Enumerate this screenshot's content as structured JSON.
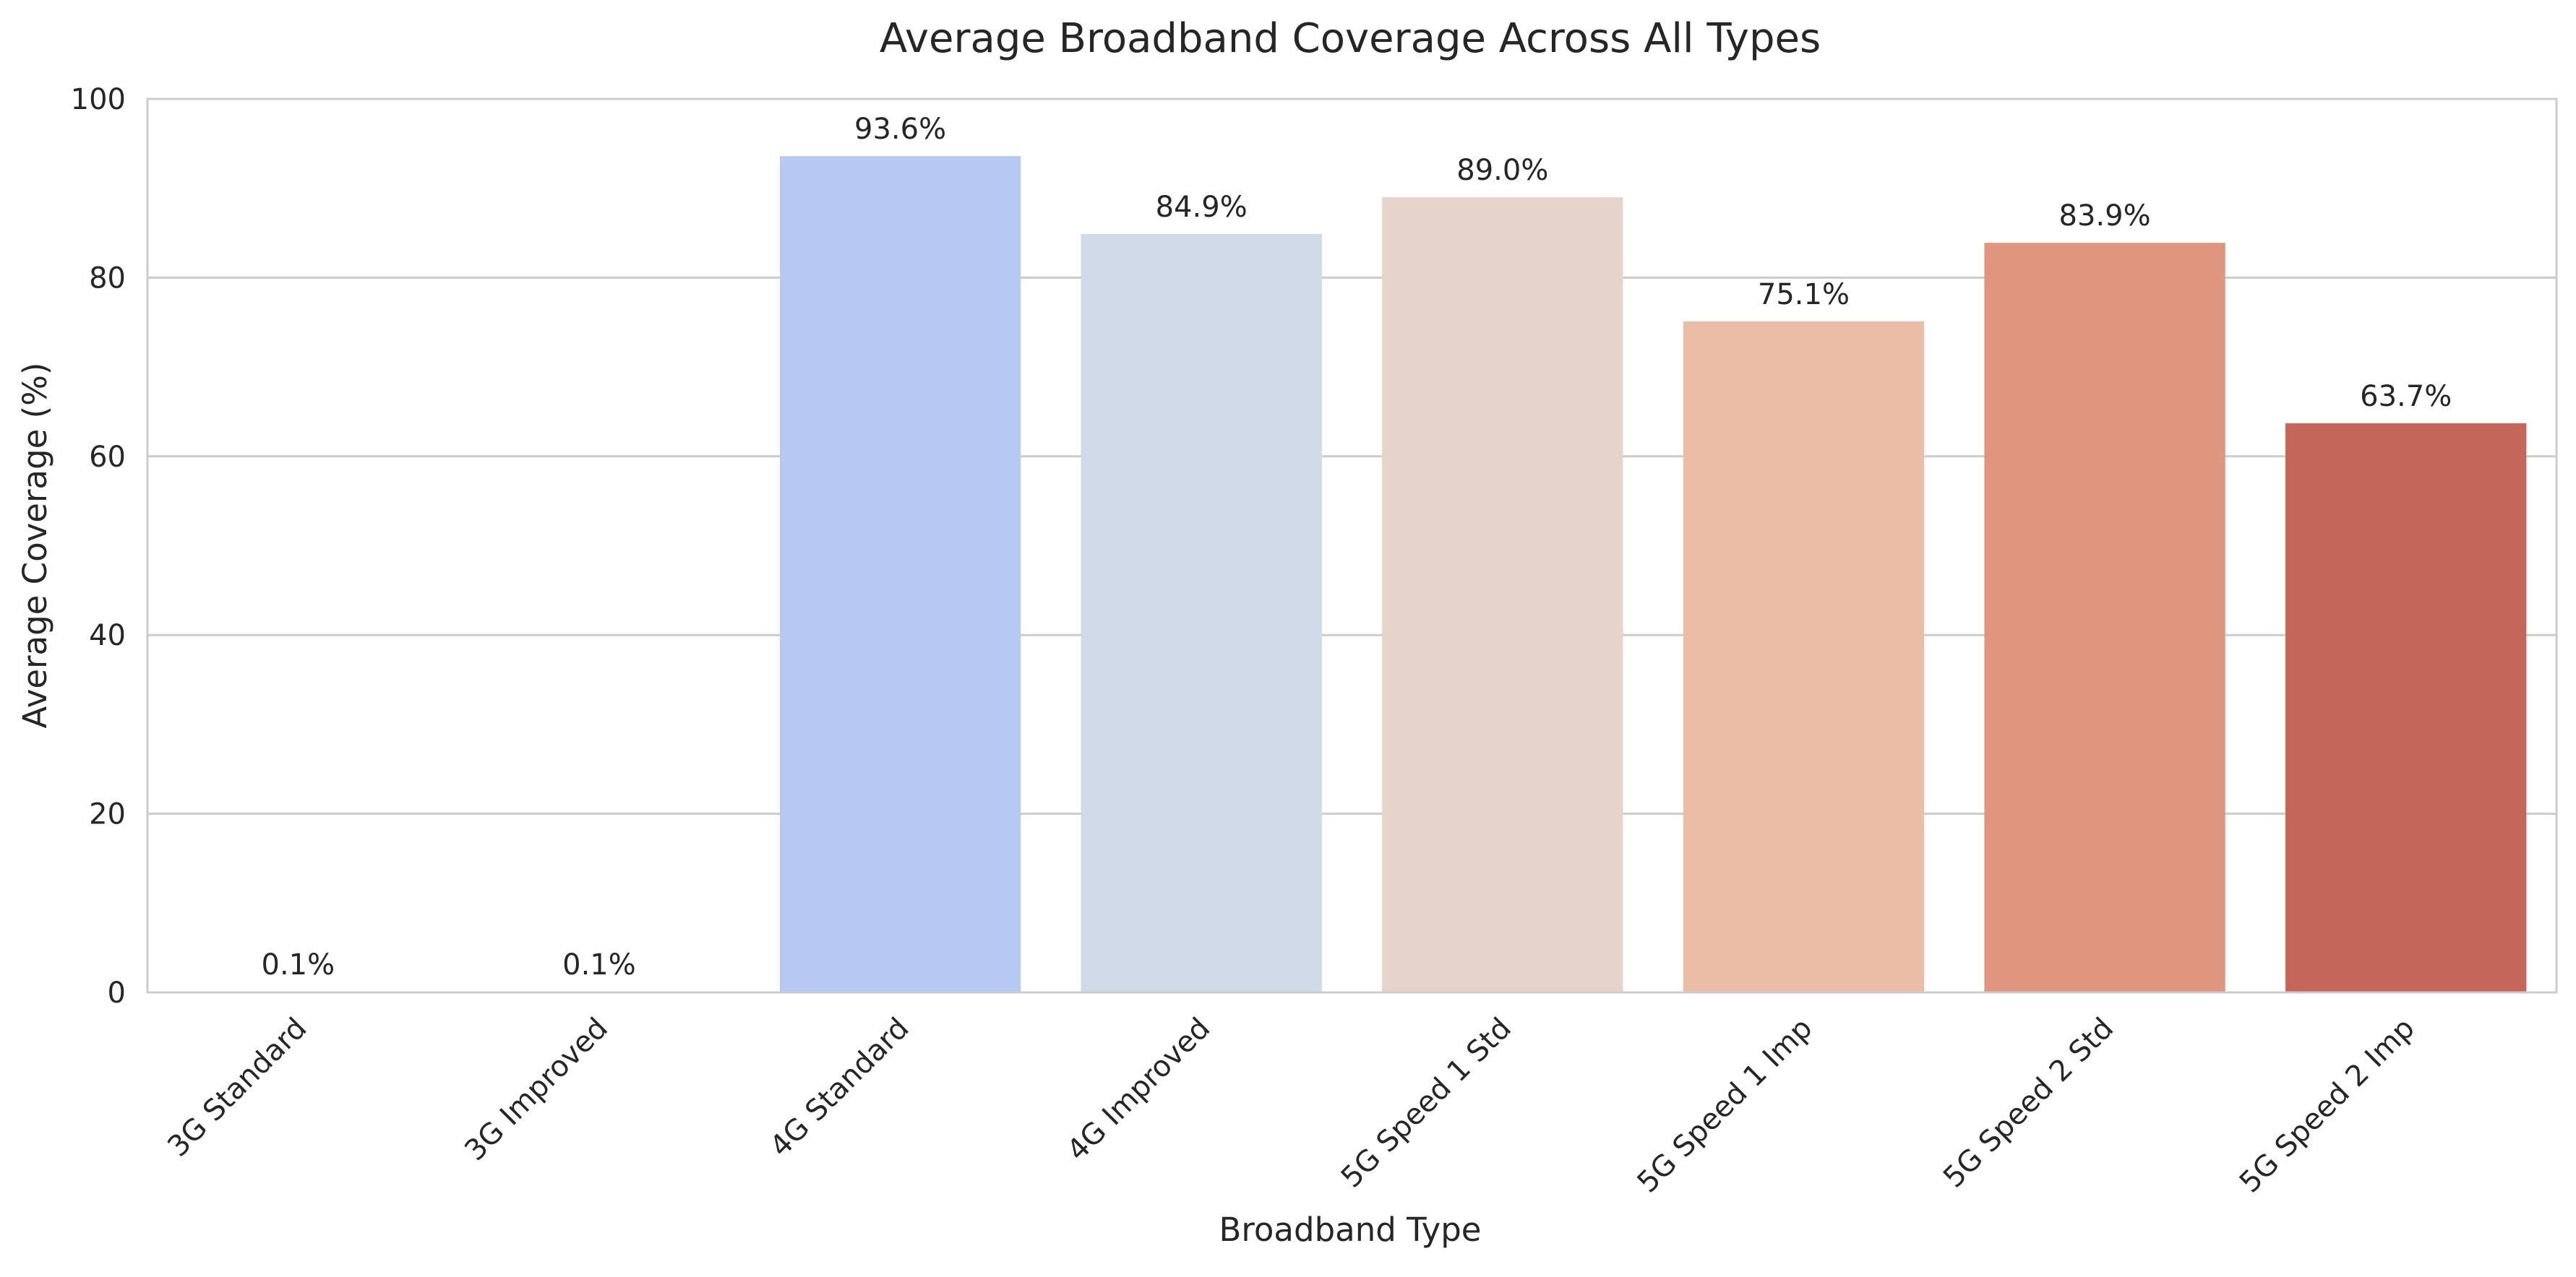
{
  "chart_data": {
    "type": "bar",
    "title": "Average Broadband Coverage Across All Types",
    "xlabel": "Broadband Type",
    "ylabel": "Average Coverage (%)",
    "ylim": [
      0,
      100
    ],
    "yticks": [
      0,
      20,
      40,
      60,
      80,
      100
    ],
    "grid": "horizontal",
    "categories": [
      "3G Standard",
      "3G Improved",
      "4G Standard",
      "4G Improved",
      "5G Speed 1 Std",
      "5G Speed 1 Imp",
      "5G Speed 2 Std",
      "5G Speed 2 Imp"
    ],
    "values": [
      0.1,
      0.1,
      93.6,
      84.9,
      89.0,
      75.1,
      83.9,
      63.7
    ],
    "data_labels": [
      "0.1%",
      "0.1%",
      "93.6%",
      "84.9%",
      "89.0%",
      "75.1%",
      "83.9%",
      "63.7%"
    ],
    "colors": [
      "#3b4cc0",
      "#7b9ff9",
      "#b5c9f3",
      "#d0dae9",
      "#e6d4cb",
      "#ebbca6",
      "#e0957e",
      "#c5665b"
    ]
  }
}
